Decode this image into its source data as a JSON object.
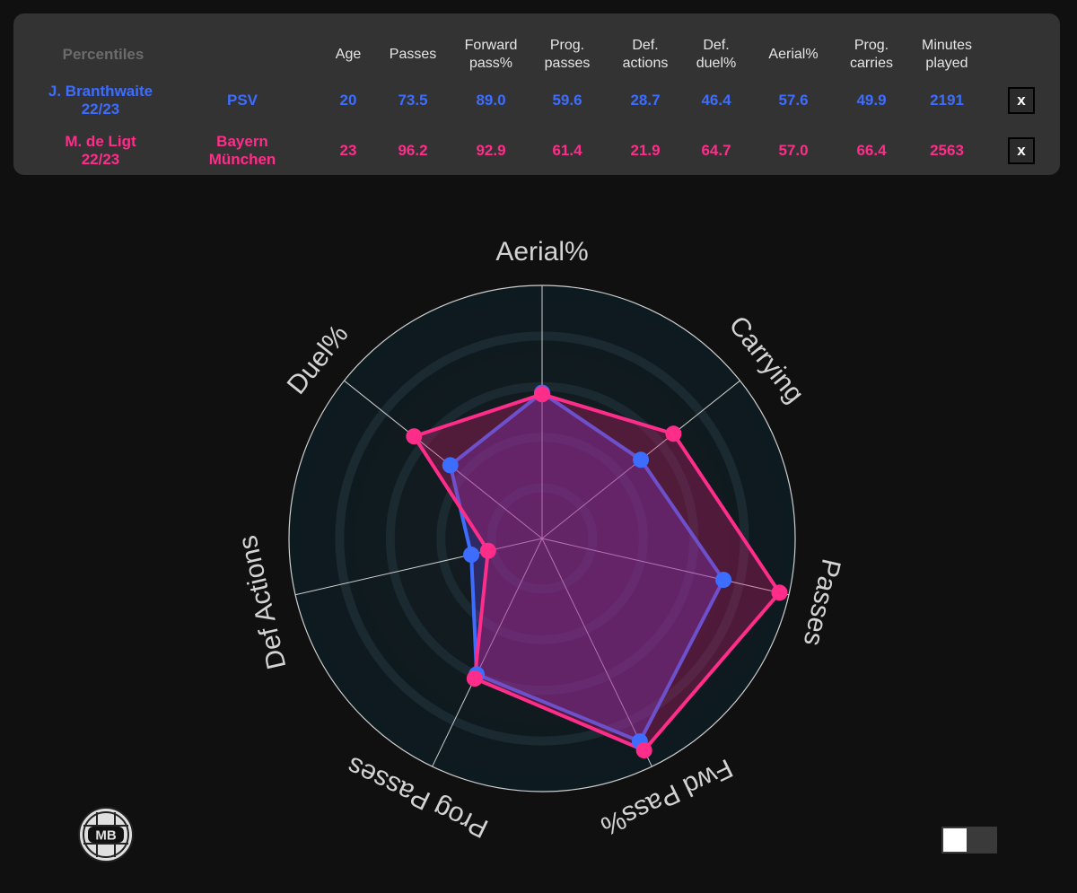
{
  "table": {
    "title": "Percentiles",
    "columns": [
      {
        "key": "age",
        "label": "Age"
      },
      {
        "key": "passes",
        "label": "Passes"
      },
      {
        "key": "forward_pass_pct",
        "label": "Forward\npass%"
      },
      {
        "key": "prog_passes",
        "label": "Prog.\npasses"
      },
      {
        "key": "def_actions",
        "label": "Def.\nactions"
      },
      {
        "key": "def_duel_pct",
        "label": "Def.\nduel%"
      },
      {
        "key": "aerial_pct",
        "label": "Aerial%"
      },
      {
        "key": "prog_carries",
        "label": "Prog.\ncarries"
      },
      {
        "key": "minutes_played",
        "label": "Minutes\nplayed"
      }
    ],
    "rows": [
      {
        "player": "J. Branthwaite\n22/23",
        "team": "PSV",
        "color": "#3d6dff",
        "values": [
          "20",
          "73.5",
          "89.0",
          "59.6",
          "28.7",
          "46.4",
          "57.6",
          "49.9",
          "2191"
        ],
        "remove_label": "x"
      },
      {
        "player": "M. de Ligt\n22/23",
        "team": "Bayern\nMünchen",
        "color": "#ff2d8a",
        "values": [
          "23",
          "96.2",
          "92.9",
          "61.4",
          "21.9",
          "64.7",
          "57.0",
          "66.4",
          "2563"
        ],
        "remove_label": "x"
      }
    ]
  },
  "chart_data": {
    "type": "radar",
    "range": [
      0,
      100
    ],
    "axes": [
      "Aerial%",
      "Carrying",
      "Passes",
      "Fwd Pass%",
      "Prog Passes",
      "Def Actions",
      "Duel%"
    ],
    "series": [
      {
        "name": "J. Branthwaite 22/23",
        "color": "#3d6dff",
        "values": [
          57.6,
          49.9,
          73.5,
          89.0,
          59.6,
          28.7,
          46.4
        ]
      },
      {
        "name": "M. de Ligt 22/23",
        "color": "#ff2d8a",
        "values": [
          57.0,
          66.4,
          96.2,
          92.9,
          61.4,
          21.9,
          64.7
        ]
      }
    ]
  },
  "logo": {
    "text": "MB"
  },
  "theme": {
    "background": "#101010",
    "panel": "#333333",
    "grid": "#cfcfcf"
  }
}
